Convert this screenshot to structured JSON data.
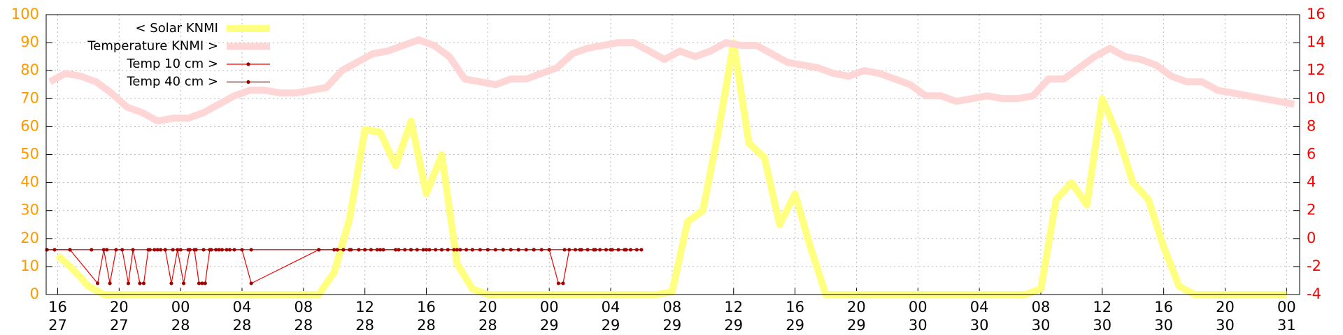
{
  "chart_data": {
    "type": "line",
    "xlim": [
      15.25,
      96.85
    ],
    "xticks": [
      {
        "value": 16,
        "label": "16\n27"
      },
      {
        "value": 20,
        "label": "20\n27"
      },
      {
        "value": 24,
        "label": "00\n28"
      },
      {
        "value": 28,
        "label": "04\n28"
      },
      {
        "value": 32,
        "label": "08\n28"
      },
      {
        "value": 36,
        "label": "12\n28"
      },
      {
        "value": 40,
        "label": "16\n28"
      },
      {
        "value": 44,
        "label": "20\n28"
      },
      {
        "value": 48,
        "label": "00\n29"
      },
      {
        "value": 52,
        "label": "04\n29"
      },
      {
        "value": 56,
        "label": "08\n29"
      },
      {
        "value": 60,
        "label": "12\n29"
      },
      {
        "value": 64,
        "label": "16\n29"
      },
      {
        "value": 68,
        "label": "20\n29"
      },
      {
        "value": 72,
        "label": "00\n30"
      },
      {
        "value": 76,
        "label": "04\n30"
      },
      {
        "value": 80,
        "label": "08\n30"
      },
      {
        "value": 84,
        "label": "12\n30"
      },
      {
        "value": 88,
        "label": "16\n30"
      },
      {
        "value": 92,
        "label": "20\n30"
      },
      {
        "value": 96,
        "label": "00\n31"
      }
    ],
    "ylim": [
      0,
      100
    ],
    "yticks": [
      0,
      10,
      20,
      30,
      40,
      50,
      60,
      70,
      80,
      90,
      100
    ],
    "ycolor": "#ff9900",
    "y2lim": [
      -4,
      16
    ],
    "y2ticks": [
      -4,
      -2,
      0,
      2,
      4,
      6,
      8,
      10,
      12,
      14,
      16
    ],
    "y2color": "#ff0000",
    "grid": true,
    "legend": "top-left",
    "series": [
      {
        "name": "< Solar KNMI",
        "color": "#ffff80",
        "style": "thick",
        "axis": "y",
        "x": [
          16,
          17,
          18,
          19,
          20,
          21,
          22,
          23,
          24,
          25,
          26,
          27,
          28,
          29,
          30,
          31,
          32,
          33,
          34,
          35,
          36,
          37,
          38,
          39,
          40,
          41,
          42,
          43,
          44,
          45,
          46,
          47,
          48,
          49,
          50,
          51,
          52,
          53,
          54,
          55,
          56,
          57,
          58,
          59,
          60,
          61,
          62,
          63,
          64,
          65,
          66,
          67,
          68,
          69,
          70,
          71,
          72,
          73,
          74,
          75,
          76,
          77,
          78,
          79,
          80,
          81,
          82,
          83,
          84,
          85,
          86,
          87,
          88,
          89,
          90,
          91,
          92,
          93,
          94,
          95,
          96
        ],
        "values": [
          14,
          9,
          3,
          0,
          0,
          0,
          0,
          0,
          0,
          0,
          0,
          0,
          0,
          0,
          0,
          0,
          0,
          0,
          8,
          27,
          59,
          58,
          46,
          62,
          36,
          50,
          11,
          2,
          0,
          0,
          0,
          0,
          0,
          0,
          0,
          0,
          0,
          0,
          0,
          0,
          1,
          26,
          30,
          58,
          90,
          54,
          49,
          25,
          36,
          17,
          0,
          0,
          0,
          0,
          0,
          0,
          0,
          0,
          0,
          0,
          0,
          0,
          0,
          0,
          2,
          34,
          40,
          32,
          70,
          57,
          40,
          34,
          17,
          3,
          0,
          0,
          0,
          0,
          0,
          0,
          0
        ]
      },
      {
        "name": "Temperature KNMI >",
        "color": "#ffd6d6",
        "style": "thick",
        "axis": "y2",
        "x": [
          15.5,
          16.5,
          17.5,
          18.5,
          19.5,
          20.5,
          21.5,
          22.5,
          23.5,
          24.5,
          25.5,
          26.5,
          27.5,
          28.5,
          29.5,
          30.5,
          31.5,
          32.5,
          33.5,
          34.5,
          35.5,
          36.5,
          37.5,
          38.5,
          39.5,
          40.5,
          41.5,
          42.5,
          43.5,
          44.5,
          45.5,
          46.5,
          47.5,
          48.5,
          49.5,
          50.5,
          51.5,
          52.5,
          53.5,
          54.5,
          55.5,
          56.5,
          57.5,
          58.5,
          59.5,
          60.5,
          61.5,
          62.5,
          63.5,
          64.5,
          65.5,
          66.5,
          67.5,
          68.5,
          69.5,
          70.5,
          71.5,
          72.5,
          73.5,
          74.5,
          75.5,
          76.5,
          77.5,
          78.5,
          79.5,
          80.5,
          81.5,
          82.5,
          83.5,
          84.5,
          85.5,
          86.5,
          87.5,
          88.5,
          89.5,
          90.5,
          91.5,
          92.5,
          93.5,
          94.5,
          95.5,
          96.5
        ],
        "values": [
          11.2,
          11.8,
          11.6,
          11.2,
          10.4,
          9.4,
          9,
          8.4,
          8.6,
          8.6,
          9,
          9.6,
          10.2,
          10.6,
          10.6,
          10.4,
          10.4,
          10.6,
          10.8,
          12,
          12.6,
          13.2,
          13.4,
          13.8,
          14.2,
          13.8,
          13,
          11.4,
          11.2,
          11,
          11.4,
          11.4,
          11.8,
          12.2,
          13.2,
          13.6,
          13.8,
          14,
          14,
          13.4,
          12.8,
          13.4,
          13,
          13.4,
          14,
          13.8,
          13.8,
          13.2,
          12.6,
          12.4,
          12.2,
          11.8,
          11.6,
          12,
          11.8,
          11.4,
          11,
          10.2,
          10.2,
          9.8,
          10,
          10.2,
          10,
          10,
          10.2,
          11.4,
          11.4,
          12.2,
          13,
          13.6,
          13,
          12.8,
          12.4,
          11.6,
          11.2,
          11.2,
          10.6,
          10.4,
          10.2,
          10,
          9.8,
          9.6
        ]
      },
      {
        "name": "Temp 10 cm >",
        "color": "#ee0000",
        "style": "line-points",
        "axis": "y2",
        "x": [
          15.3,
          15.8,
          16.8,
          18.6,
          19.0,
          19.4,
          19.8,
          20.2,
          20.6,
          20.9,
          21.35,
          21.6,
          21.9,
          22.3,
          22.7,
          23.0,
          23.4,
          23.8,
          24.2,
          24.6,
          24.9,
          25.2,
          25.4,
          25.6,
          25.9,
          26.3,
          26.7,
          27.2,
          28.0,
          28.6,
          33.0,
          34.2,
          34.6,
          35.1,
          35.6,
          36.0,
          36.4,
          36.8,
          37.2,
          38.2,
          38.6,
          39.0,
          39.4,
          39.8,
          40.2,
          40.6,
          41.0,
          41.4,
          41.8,
          42.2,
          42.6,
          43.0,
          43.5,
          44.0,
          44.5,
          45.0,
          45.5,
          46.0,
          46.5,
          47.0,
          47.5,
          48.0,
          48.6,
          48.9,
          49.3,
          49.7,
          50.1,
          50.5,
          50.9,
          51.3,
          51.7,
          52.1,
          52.5,
          52.9,
          53.3,
          53.7
        ],
        "values": [
          -0.8,
          -0.8,
          -0.8,
          -3.2,
          -0.8,
          -3.2,
          -0.8,
          -0.8,
          -3.2,
          -0.8,
          -3.2,
          -3.2,
          -0.8,
          -0.8,
          -0.8,
          -0.8,
          -3.2,
          -0.8,
          -3.2,
          -0.8,
          -0.8,
          -3.2,
          -3.2,
          -3.2,
          -0.8,
          -0.8,
          -0.8,
          -0.8,
          -0.8,
          -3.2,
          -0.8,
          -0.8,
          -0.8,
          -0.8,
          -0.8,
          -0.8,
          -0.8,
          -0.8,
          -0.8,
          -0.8,
          -0.8,
          -0.8,
          -0.8,
          -0.8,
          -0.8,
          -0.8,
          -0.8,
          -0.8,
          -0.8,
          -0.8,
          -0.8,
          -0.8,
          -0.8,
          -0.8,
          -0.8,
          -0.8,
          -0.8,
          -0.8,
          -0.8,
          -0.8,
          -0.8,
          -0.8,
          -3.2,
          -3.2,
          -0.8,
          -0.8,
          -0.8,
          -0.8,
          -0.8,
          -0.8,
          -0.8,
          -0.8,
          -0.8,
          -0.8,
          -0.8,
          -0.8
        ]
      },
      {
        "name": "Temp 40 cm >",
        "color": "#aa0000",
        "style": "line-points",
        "axis": "y2",
        "x": [
          15.3,
          16.8,
          18.2,
          19.2,
          22.0,
          22.5,
          23.0,
          23.5,
          24.0,
          24.5,
          25.0,
          25.5,
          26.0,
          26.5,
          27.0,
          27.5,
          28.6,
          33.0,
          34,
          35,
          36,
          37,
          38,
          39,
          40,
          41,
          42,
          43,
          44,
          45,
          46,
          47,
          48,
          49,
          50,
          51,
          52,
          53,
          54
        ],
        "values": [
          -0.8,
          -0.8,
          -0.8,
          -0.8,
          -0.8,
          -0.8,
          -0.8,
          -0.8,
          -0.8,
          -0.8,
          -0.8,
          -0.8,
          -0.8,
          -0.8,
          -0.8,
          -0.8,
          -0.8,
          -0.8,
          -0.8,
          -0.8,
          -0.8,
          -0.8,
          -0.8,
          -0.8,
          -0.8,
          -0.8,
          -0.8,
          -0.8,
          -0.8,
          -0.8,
          -0.8,
          -0.8,
          -0.8,
          -0.8,
          -0.8,
          -0.8,
          -0.8,
          -0.8,
          -0.8
        ]
      }
    ]
  }
}
